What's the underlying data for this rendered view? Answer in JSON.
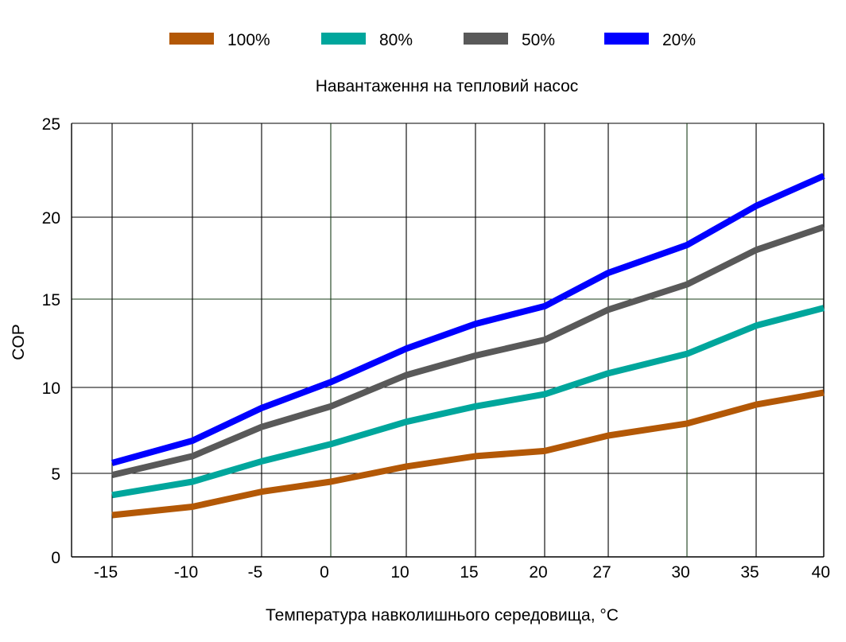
{
  "chart_data": {
    "type": "line",
    "subtitle": "Навантаження на тепловий насос",
    "xlabel": "Температура навколишнього середовища, °C",
    "ylabel": "COP",
    "x_ticks": [
      "-15",
      "-10",
      "-5",
      "0",
      "10",
      "15",
      "20",
      "27",
      "30",
      "35",
      "40"
    ],
    "y_ticks": [
      "0",
      "5",
      "10",
      "15",
      "20",
      "25"
    ],
    "legend_position": "top-center",
    "grid": true,
    "series": [
      {
        "name": "100%",
        "color": "#b35806",
        "values": [
          2.5,
          3.0,
          3.9,
          4.5,
          5.4,
          6.0,
          6.3,
          7.2,
          7.9,
          9.0,
          9.7
        ]
      },
      {
        "name": "80%",
        "color": "#00a69c",
        "values": [
          3.7,
          4.5,
          5.7,
          6.7,
          8.0,
          8.9,
          9.6,
          10.8,
          11.9,
          13.5,
          14.5
        ]
      },
      {
        "name": "50%",
        "color": "#595959",
        "values": [
          4.9,
          6.0,
          7.7,
          8.9,
          10.7,
          11.8,
          12.7,
          14.4,
          15.9,
          18.0,
          19.4
        ]
      },
      {
        "name": "20%",
        "color": "#0000ff",
        "values": [
          5.6,
          6.9,
          8.8,
          10.3,
          12.2,
          13.6,
          14.6,
          16.6,
          18.3,
          20.6,
          22.2
        ]
      }
    ]
  }
}
